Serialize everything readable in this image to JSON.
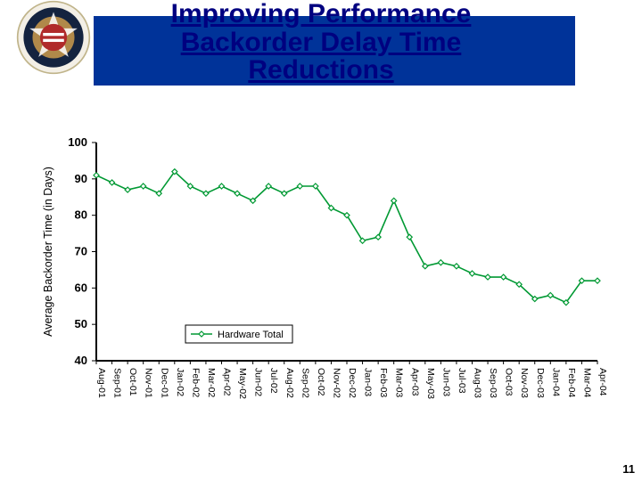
{
  "header": {
    "band_color": "#003399",
    "title_lines": [
      "Improving Performance",
      "Backorder Delay Time",
      "Reductions"
    ],
    "title_color": "#000080",
    "title_fontsize_pt": 28
  },
  "page_number": "11",
  "chart": {
    "type": "line",
    "ylabel": "Average Backorder Time (in Days)",
    "ylim": [
      40,
      100
    ],
    "ytick_step": 10,
    "yticks": [
      40,
      50,
      60,
      70,
      80,
      90,
      100
    ],
    "x_categories": [
      "Aug-01",
      "Sep-01",
      "Oct-01",
      "Nov-01",
      "Dec-01",
      "Jan-02",
      "Feb-02",
      "Mar-02",
      "Apr-02",
      "May-02",
      "Jun-02",
      "Jul-02",
      "Aug-02",
      "Sep-02",
      "Oct-02",
      "Nov-02",
      "Dec-02",
      "Jan-03",
      "Feb-03",
      "Mar-03",
      "Apr-03",
      "May-03",
      "Jun-03",
      "Jul-03",
      "Aug-03",
      "Sep-03",
      "Oct-03",
      "Nov-03",
      "Dec-03",
      "Jan-04",
      "Feb-04",
      "Mar-04",
      "Apr-04"
    ],
    "series": {
      "name": "Hardware Total",
      "values": [
        91,
        89,
        87,
        88,
        86,
        92,
        88,
        86,
        88,
        86,
        84,
        88,
        86,
        88,
        88,
        82,
        80,
        73,
        74,
        84,
        74,
        66,
        67,
        66,
        64,
        63,
        63,
        61,
        57,
        58,
        56,
        62,
        62
      ],
      "line_color": "#009933",
      "line_width": 1.6,
      "marker_shape": "diamond",
      "marker_size": 6,
      "marker_fill": "#ffffff",
      "marker_stroke": "#009933"
    },
    "background_color": "#ffffff",
    "axis_color": "#000000",
    "legend": {
      "label": "Hardware Total",
      "position": "lower-left",
      "border_color": "#000000"
    }
  }
}
